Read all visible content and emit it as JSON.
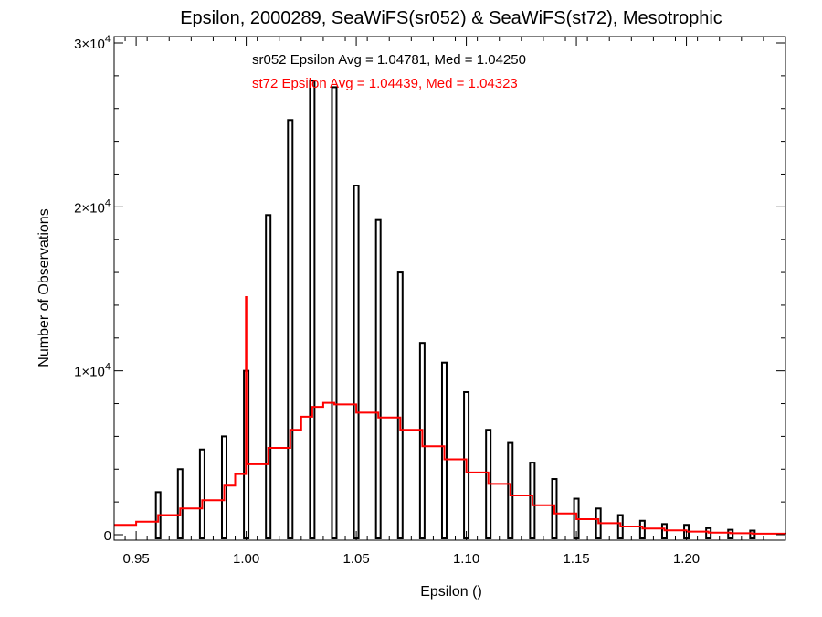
{
  "chart_data": {
    "type": "bar",
    "title": "Epsilon, 2000289, SeaWiFS(sr052) & SeaWiFS(st72), Mesotrophic",
    "xlabel": "Epsilon ()",
    "ylabel": "Number of Observations",
    "xlim": [
      0.94,
      1.245
    ],
    "ylim": [
      0,
      30000
    ],
    "x_ticks": [
      "0.95",
      "1.00",
      "1.05",
      "1.10",
      "1.15",
      "1.20"
    ],
    "y_ticks": [
      {
        "mantissa": "0",
        "exponent": ""
      },
      {
        "mantissa": "1×10",
        "exponent": "4"
      },
      {
        "mantissa": "2×10",
        "exponent": "4"
      },
      {
        "mantissa": "3×10",
        "exponent": "4"
      }
    ],
    "annotations": [
      {
        "text": "sr052 Epsilon Avg = 1.04781, Med = 1.04250",
        "color": "#000000"
      },
      {
        "text": "st72 Epsilon Avg = 1.04439, Med = 1.04323",
        "color": "#ff0000"
      }
    ],
    "grid": false,
    "series": [
      {
        "name": "sr052",
        "color": "#000000",
        "style": "histogram-bars",
        "x": [
          0.96,
          0.97,
          0.98,
          0.99,
          1.0,
          1.01,
          1.02,
          1.03,
          1.04,
          1.05,
          1.06,
          1.07,
          1.08,
          1.09,
          1.1,
          1.11,
          1.12,
          1.13,
          1.14,
          1.15,
          1.16,
          1.17,
          1.18,
          1.19,
          1.2,
          1.21,
          1.22,
          1.23
        ],
        "values": [
          2600,
          4000,
          5200,
          6000,
          10000,
          19500,
          25300,
          27700,
          27300,
          21300,
          19200,
          16000,
          11700,
          10500,
          8700,
          6400,
          5600,
          4400,
          3400,
          2200,
          1600,
          1200,
          850,
          650,
          600,
          400,
          300,
          250
        ]
      },
      {
        "name": "st72",
        "color": "#ff0000",
        "style": "step-line",
        "x": [
          0.94,
          0.95,
          0.96,
          0.97,
          0.98,
          0.99,
          0.995,
          0.9999,
          1.0001,
          1.01,
          1.02,
          1.025,
          1.03,
          1.035,
          1.04,
          1.05,
          1.06,
          1.07,
          1.08,
          1.09,
          1.1,
          1.11,
          1.12,
          1.13,
          1.14,
          1.15,
          1.16,
          1.17,
          1.18,
          1.19,
          1.2,
          1.21,
          1.22,
          1.23,
          1.245
        ],
        "values": [
          600,
          800,
          1200,
          1600,
          2100,
          3000,
          3700,
          14500,
          4300,
          5300,
          6400,
          7200,
          7800,
          8050,
          7950,
          7450,
          7150,
          6400,
          5400,
          4600,
          3800,
          3100,
          2400,
          1800,
          1300,
          950,
          700,
          500,
          380,
          260,
          190,
          130,
          90,
          60,
          30
        ]
      }
    ]
  }
}
